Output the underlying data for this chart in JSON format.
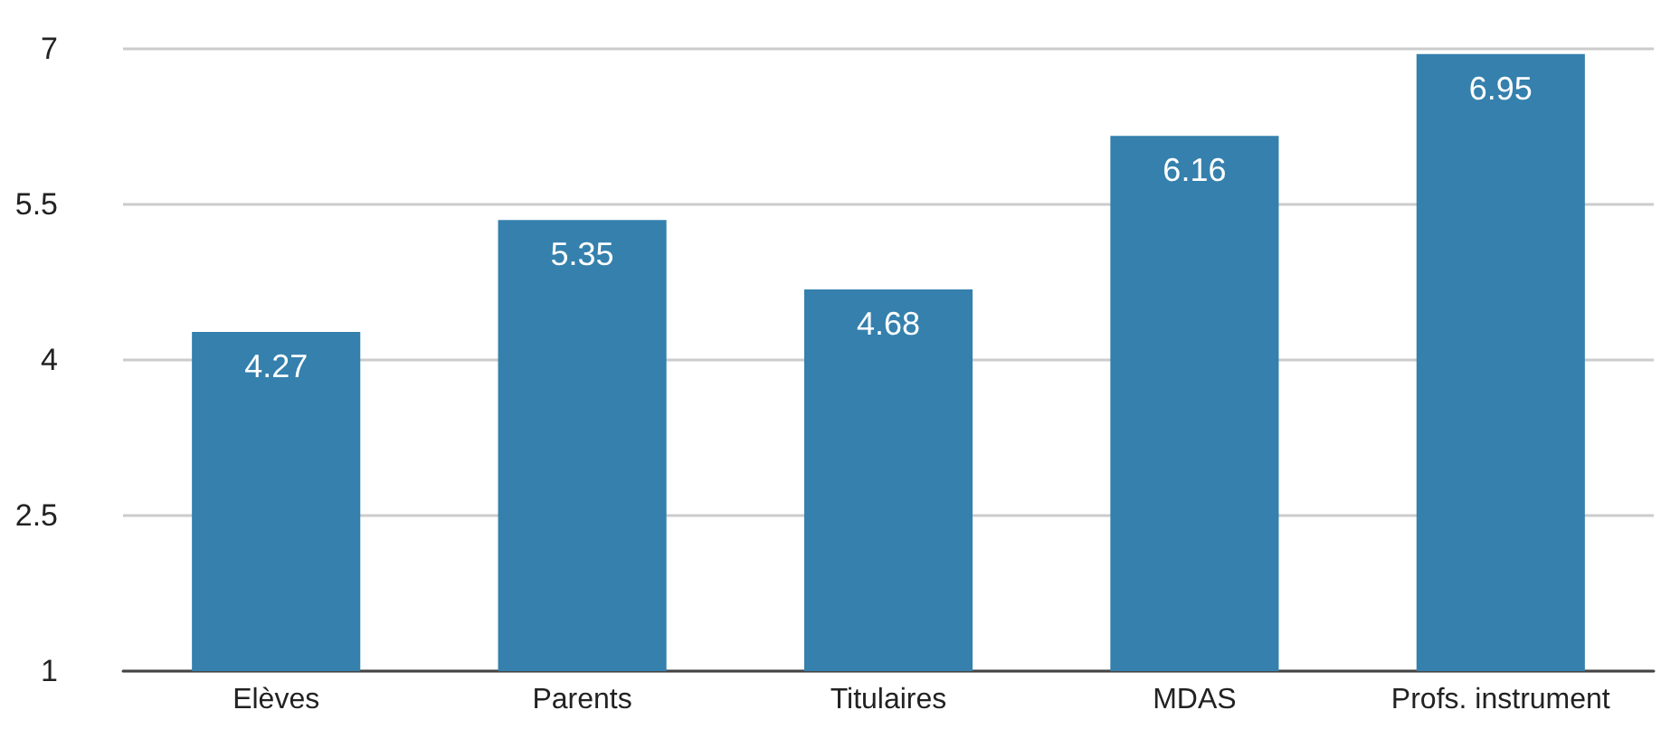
{
  "chart_data": {
    "type": "bar",
    "categories": [
      "Elèves",
      "Parents",
      "Titulaires",
      "MDAS",
      "Profs. instrument"
    ],
    "values": [
      4.27,
      5.35,
      4.68,
      6.16,
      6.95
    ],
    "color": "#3580ad",
    "ylim": [
      1,
      7
    ],
    "yticks": [
      1,
      2.5,
      4,
      5.5,
      7
    ],
    "grid": "y",
    "data_labels": true
  }
}
